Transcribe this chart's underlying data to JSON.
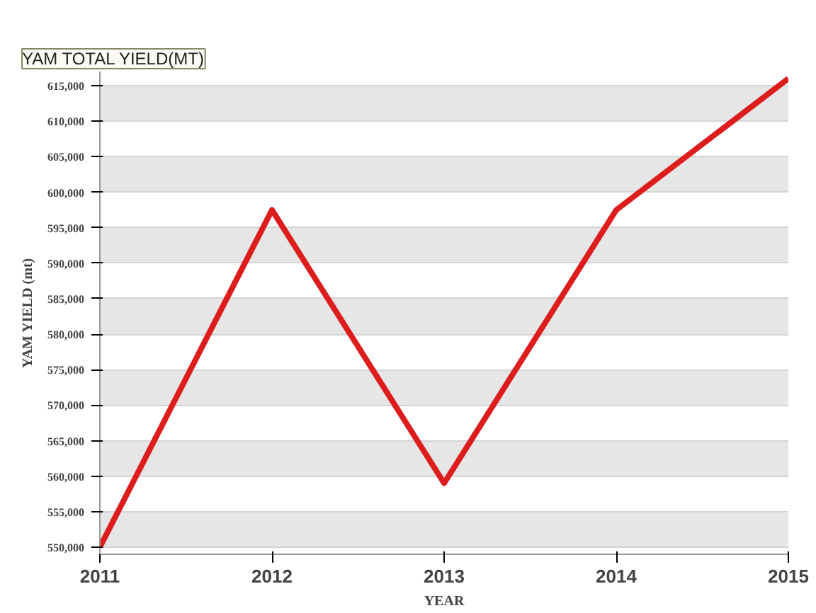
{
  "chart_data": {
    "type": "line",
    "title": "YAM TOTAL YIELD(MT)",
    "xlabel": "YEAR",
    "ylabel": "YAM YIELD (mt)",
    "x": [
      2011,
      2012,
      2013,
      2014,
      2015
    ],
    "series": [
      {
        "color": "#dd1c1c",
        "values": [
          550000,
          597500,
          559000,
          597500,
          616000
        ]
      }
    ],
    "xlim": [
      2011,
      2015
    ],
    "xticks": [
      2011,
      2012,
      2013,
      2014,
      2015
    ],
    "ylim": [
      549000,
      617000
    ],
    "yticks": [
      {
        "value": 550000,
        "label": "550,000"
      },
      {
        "value": 555000,
        "label": "555,000"
      },
      {
        "value": 560000,
        "label": "560,000"
      },
      {
        "value": 565000,
        "label": "565,000"
      },
      {
        "value": 570000,
        "label": "570,000"
      },
      {
        "value": 575000,
        "label": "575,000"
      },
      {
        "value": 580000,
        "label": "580,000"
      },
      {
        "value": 585000,
        "label": "585,000"
      },
      {
        "value": 590000,
        "label": "590,000"
      },
      {
        "value": 595000,
        "label": "595,000"
      },
      {
        "value": 600000,
        "label": "600,000"
      },
      {
        "value": 605000,
        "label": "605,000"
      },
      {
        "value": 610000,
        "label": "610,000"
      },
      {
        "value": 615000,
        "label": "615,000"
      }
    ],
    "grid": "y",
    "marker": "none",
    "line_style": "solid"
  }
}
